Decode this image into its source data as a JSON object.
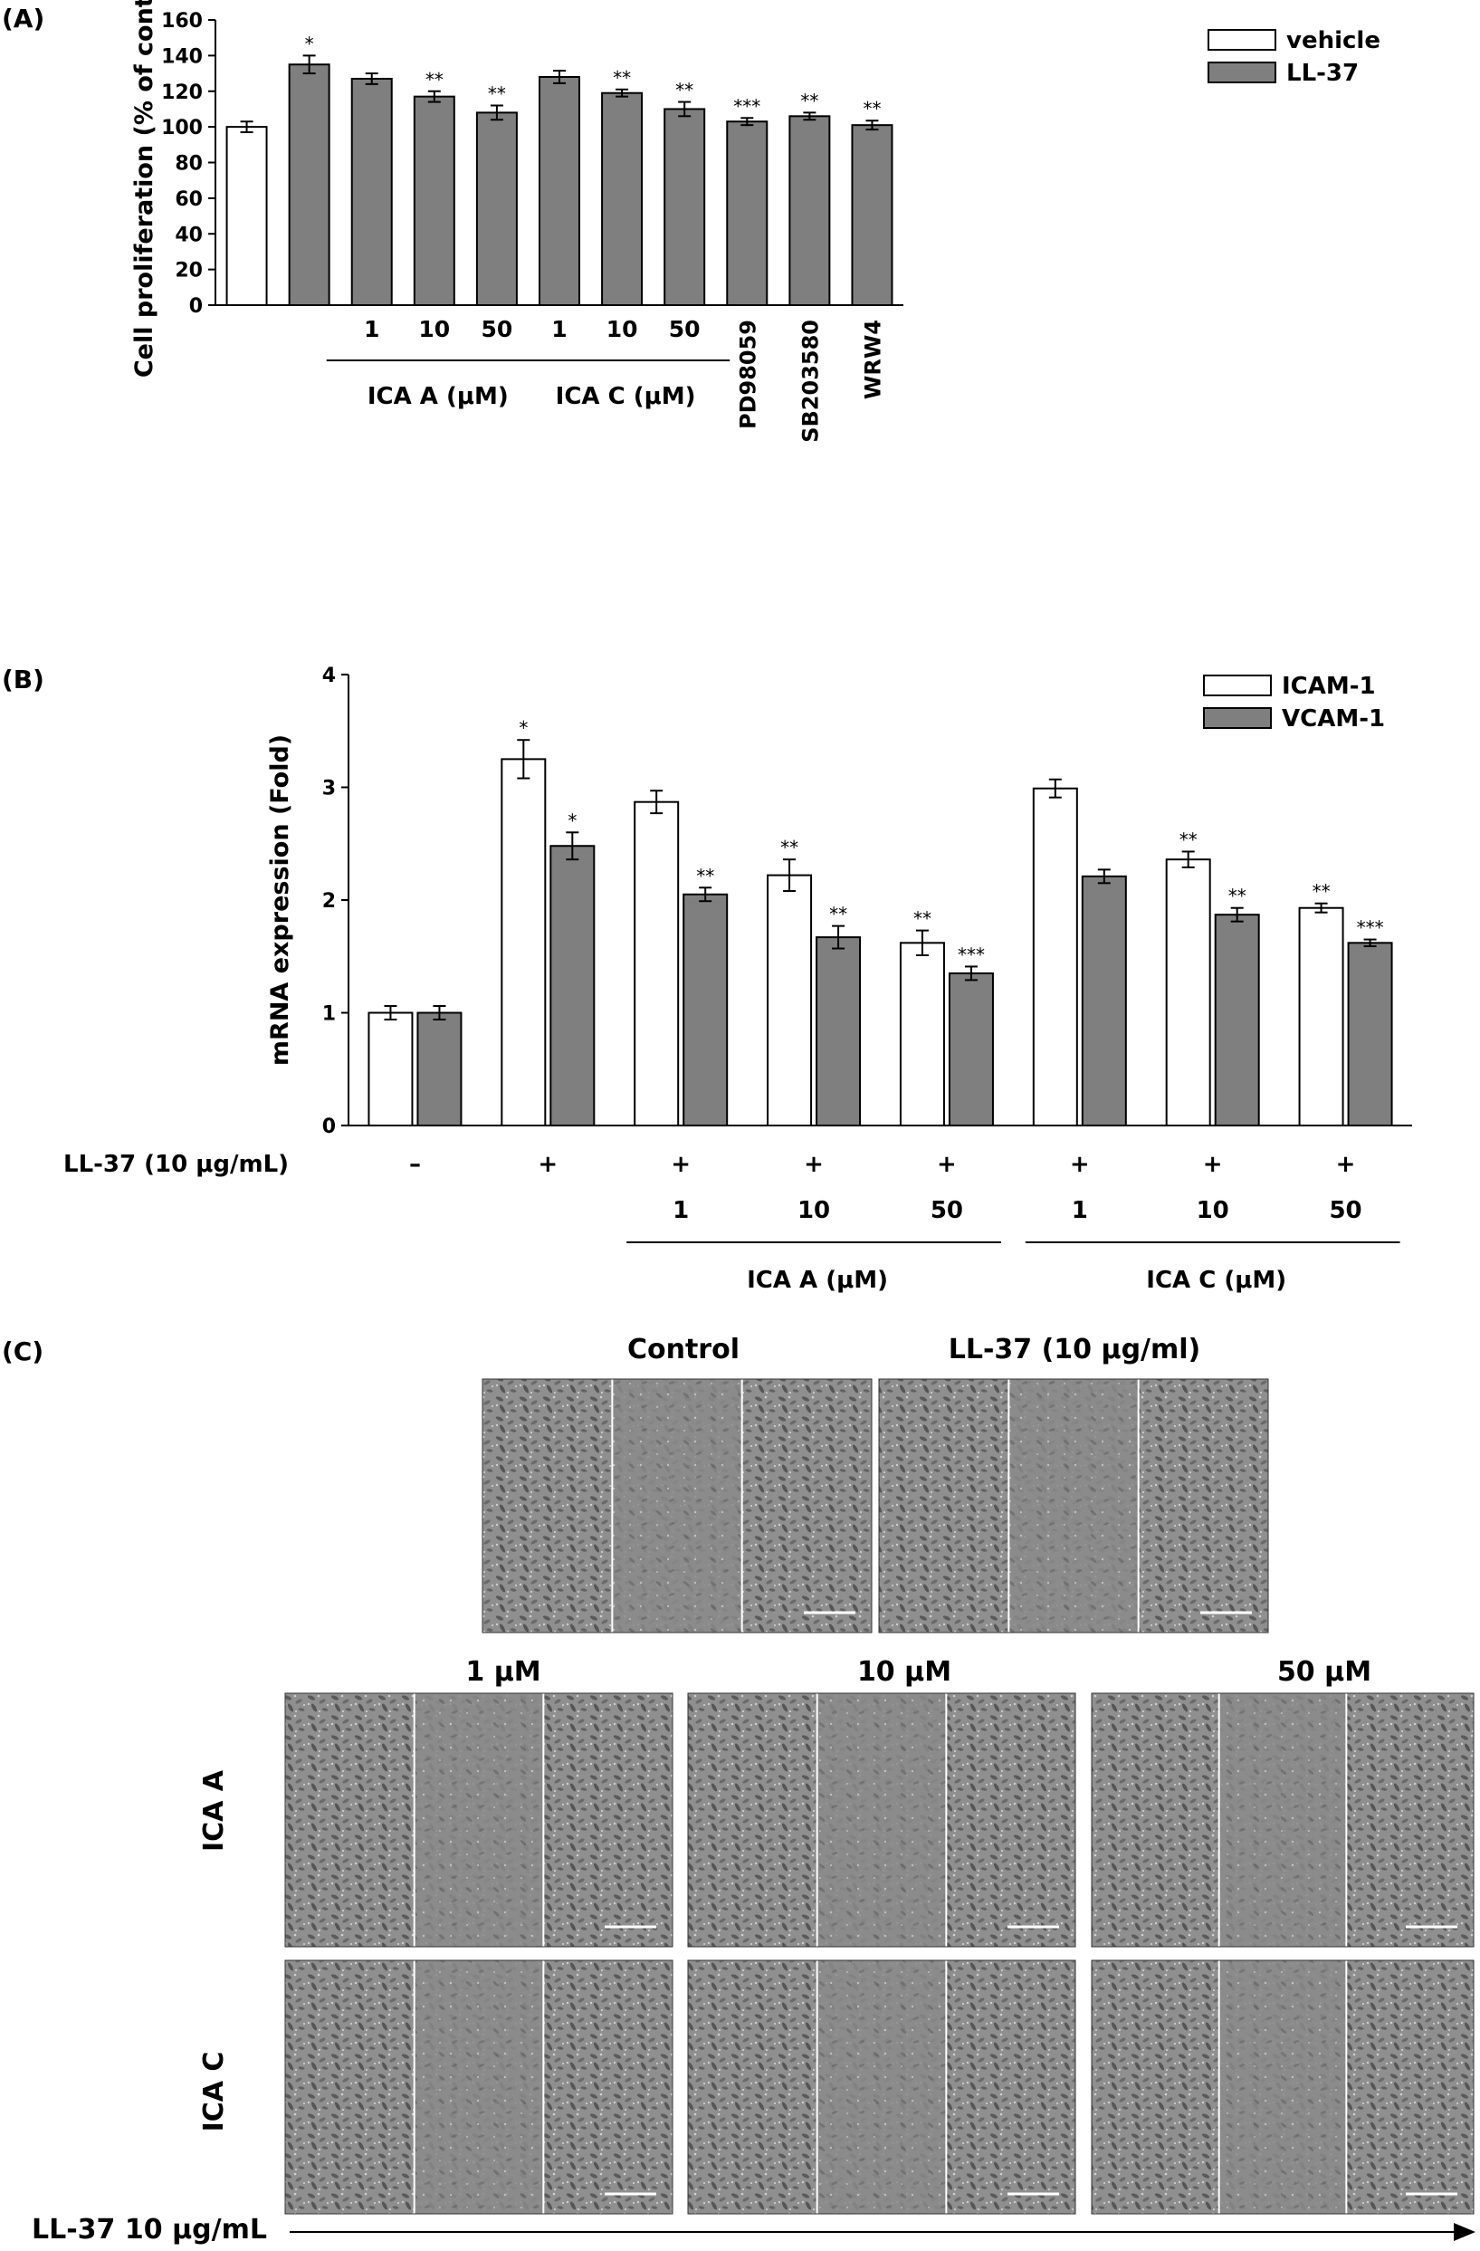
{
  "panel_labels": {
    "a": "(A)",
    "b": "(B)",
    "c": "(C)"
  },
  "colors": {
    "vehicle": "#ffffff",
    "treated": "#7f7f7f",
    "axis": "#000000",
    "image_bg": "#8c8c8c",
    "image_divider": "#ffffff"
  },
  "chart_data": [
    {
      "type": "bar",
      "panel": "(A)",
      "ylabel": "Cell proliferation (% of control)",
      "ylim": [
        0,
        160
      ],
      "yticks": [
        "0",
        "20",
        "40",
        "60",
        "80",
        "100",
        "120",
        "140",
        "160"
      ],
      "legend": [
        {
          "name": "vehicle",
          "color": "#ffffff"
        },
        {
          "name": "LL-37",
          "color": "#7f7f7f"
        }
      ],
      "legend_position": "top-right",
      "bars": [
        {
          "series": "vehicle",
          "value": 100,
          "err": 3,
          "sig": ""
        },
        {
          "series": "LL-37",
          "value": 135,
          "err": 5,
          "sig": "*"
        },
        {
          "series": "LL-37",
          "value": 127,
          "err": 3,
          "sig": ""
        },
        {
          "series": "LL-37",
          "value": 117,
          "err": 3,
          "sig": "**"
        },
        {
          "series": "LL-37",
          "value": 108,
          "err": 4,
          "sig": "**"
        },
        {
          "series": "LL-37",
          "value": 128,
          "err": 3.5,
          "sig": ""
        },
        {
          "series": "LL-37",
          "value": 119,
          "err": 2,
          "sig": "**"
        },
        {
          "series": "LL-37",
          "value": 110,
          "err": 4,
          "sig": "**"
        },
        {
          "series": "LL-37",
          "value": 103,
          "err": 2,
          "sig": "***"
        },
        {
          "series": "LL-37",
          "value": 106,
          "err": 2,
          "sig": "**"
        },
        {
          "series": "LL-37",
          "value": 101,
          "err": 2.5,
          "sig": "**"
        }
      ],
      "concentration_labels": [
        "1",
        "10",
        "50",
        "1",
        "10",
        "50"
      ],
      "group_labels": [
        "ICA A (μM)",
        "ICA C (μM)"
      ],
      "inhibitor_labels": [
        "PD98059",
        "SB203580",
        "WRW4"
      ]
    },
    {
      "type": "bar",
      "panel": "(B)",
      "ylabel": "mRNA expression (Fold)",
      "ylim": [
        0,
        4
      ],
      "yticks": [
        "0",
        "1",
        "2",
        "3",
        "4"
      ],
      "legend": [
        {
          "name": "ICAM-1",
          "color": "#ffffff"
        },
        {
          "name": "VCAM-1",
          "color": "#7f7f7f"
        }
      ],
      "legend_position": "top-right",
      "series": [
        {
          "name": "ICAM-1",
          "values": [
            1.0,
            3.25,
            2.87,
            2.22,
            1.62,
            2.99,
            2.36,
            1.93
          ],
          "err": [
            0.06,
            0.17,
            0.1,
            0.14,
            0.11,
            0.08,
            0.07,
            0.04
          ],
          "sig": [
            "",
            "*",
            "",
            "**",
            "**",
            "",
            "**",
            "**"
          ]
        },
        {
          "name": "VCAM-1",
          "values": [
            1.0,
            2.48,
            2.05,
            1.67,
            1.35,
            2.21,
            1.87,
            1.62
          ],
          "err": [
            0.06,
            0.12,
            0.06,
            0.1,
            0.06,
            0.06,
            0.06,
            0.03
          ],
          "sig": [
            "",
            "*",
            "**",
            "**",
            "***",
            "",
            "**",
            "***"
          ]
        }
      ],
      "row_label": "LL-37 (10 μg/mL)",
      "ll37_signs": [
        "–",
        "+",
        "+",
        "+",
        "+",
        "+",
        "+",
        "+"
      ],
      "concentration_labels": [
        "1",
        "10",
        "50",
        "1",
        "10",
        "50"
      ],
      "group_labels": [
        "ICA A (μM)",
        "ICA C (μM)"
      ]
    }
  ],
  "panel_c": {
    "top_labels": [
      "Control",
      "LL-37 (10 μg/ml)"
    ],
    "dose_labels": [
      "1 μM",
      "10 μM",
      "50 μM"
    ],
    "row_labels": [
      "ICA A",
      "ICA C"
    ],
    "arrow_label": "LL-37 10 μg/mL"
  }
}
